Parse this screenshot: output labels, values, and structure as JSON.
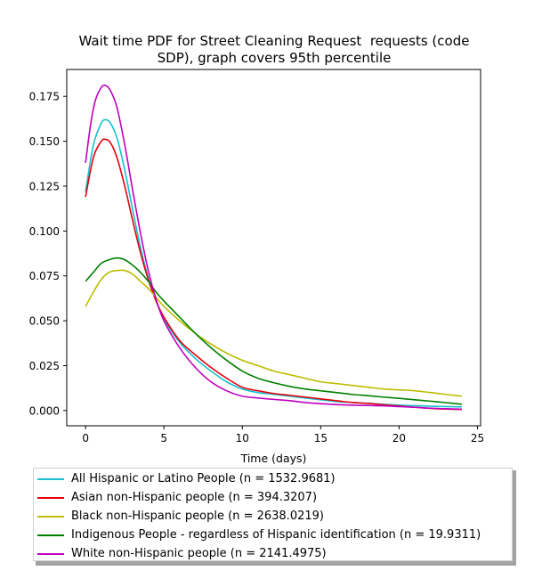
{
  "chart_data": {
    "type": "line",
    "title_lines": [
      "Wait time PDF for Street Cleaning Request  requests (code",
      "SDP), graph covers 95th percentile"
    ],
    "xlabel": "Time (days)",
    "ylabel": "",
    "xlim": [
      -1.2,
      25.2
    ],
    "ylim": [
      -0.0085,
      0.19
    ],
    "xticks": [
      0,
      5,
      10,
      15,
      20,
      25
    ],
    "yticks": [
      0.0,
      0.025,
      0.05,
      0.075,
      0.1,
      0.125,
      0.15,
      0.175
    ],
    "ytick_labels": [
      "0.000",
      "0.025",
      "0.050",
      "0.075",
      "0.100",
      "0.125",
      "0.150",
      "0.175"
    ],
    "legend_position": "below plot",
    "series": [
      {
        "name": "All Hispanic or Latino People (n = 1532.9681)",
        "color": "#17becf",
        "x": [
          0,
          0.5,
          1,
          1.3,
          1.6,
          2,
          2.5,
          3,
          3.5,
          4,
          4.5,
          5,
          6,
          7,
          8,
          9,
          10,
          11,
          12,
          13,
          14,
          15,
          16,
          17,
          18,
          19,
          20,
          21,
          22,
          23,
          24
        ],
        "y": [
          0.122,
          0.148,
          0.16,
          0.162,
          0.16,
          0.152,
          0.134,
          0.112,
          0.091,
          0.074,
          0.061,
          0.051,
          0.038,
          0.029,
          0.022,
          0.016,
          0.012,
          0.01,
          0.009,
          0.008,
          0.007,
          0.006,
          0.005,
          0.0045,
          0.004,
          0.0035,
          0.003,
          0.0027,
          0.0024,
          0.0022,
          0.002
        ]
      },
      {
        "name": "Asian non-Hispanic people (n = 394.3207)",
        "color": "#e8000b",
        "x": [
          0,
          0.5,
          1,
          1.3,
          1.6,
          2,
          2.5,
          3,
          3.5,
          4,
          4.5,
          5,
          6,
          7,
          8,
          9,
          10,
          11,
          12,
          13,
          14,
          15,
          16,
          17,
          18,
          19,
          20,
          21,
          22,
          23,
          24
        ],
        "y": [
          0.119,
          0.141,
          0.15,
          0.151,
          0.149,
          0.141,
          0.125,
          0.106,
          0.088,
          0.073,
          0.061,
          0.052,
          0.039,
          0.031,
          0.024,
          0.018,
          0.013,
          0.011,
          0.0095,
          0.0085,
          0.0075,
          0.0065,
          0.0055,
          0.0045,
          0.004,
          0.0032,
          0.0025,
          0.0018,
          0.0012,
          0.0008,
          0.0006
        ]
      },
      {
        "name": "Black non-Hispanic people (n = 2638.0219)",
        "color": "#bcbd00",
        "x": [
          0,
          0.5,
          1,
          1.5,
          2,
          2.5,
          3,
          3.5,
          4,
          4.5,
          5,
          6,
          7,
          8,
          9,
          10,
          11,
          12,
          13,
          14,
          15,
          16,
          17,
          18,
          19,
          20,
          21,
          22,
          23,
          24
        ],
        "y": [
          0.058,
          0.066,
          0.073,
          0.077,
          0.078,
          0.078,
          0.076,
          0.072,
          0.068,
          0.063,
          0.058,
          0.05,
          0.043,
          0.037,
          0.032,
          0.028,
          0.025,
          0.022,
          0.02,
          0.018,
          0.016,
          0.015,
          0.014,
          0.013,
          0.012,
          0.0115,
          0.011,
          0.01,
          0.009,
          0.008
        ]
      },
      {
        "name": "Indigenous People - regardless of Hispanic identification (n = 19.9311)",
        "color": "#008000",
        "x": [
          0,
          0.5,
          1,
          1.5,
          2,
          2.5,
          3,
          3.5,
          4,
          4.5,
          5,
          6,
          7,
          8,
          9,
          10,
          11,
          12,
          13,
          14,
          15,
          16,
          17,
          18,
          19,
          20,
          21,
          22,
          23,
          24
        ],
        "y": [
          0.072,
          0.077,
          0.082,
          0.084,
          0.085,
          0.084,
          0.081,
          0.077,
          0.072,
          0.066,
          0.061,
          0.052,
          0.043,
          0.035,
          0.028,
          0.022,
          0.018,
          0.0155,
          0.0135,
          0.012,
          0.011,
          0.01,
          0.009,
          0.0083,
          0.0075,
          0.0068,
          0.006,
          0.0052,
          0.0044,
          0.0035
        ]
      },
      {
        "name": "White non-Hispanic people (n = 2141.4975)",
        "color": "#bf00bf",
        "x": [
          0,
          0.3,
          0.6,
          1,
          1.3,
          1.6,
          2,
          2.5,
          3,
          3.5,
          4,
          4.5,
          5,
          6,
          7,
          8,
          9,
          10,
          11,
          12,
          13,
          14,
          15,
          16,
          17,
          18,
          19,
          20,
          21,
          22,
          23,
          24
        ],
        "y": [
          0.138,
          0.158,
          0.172,
          0.18,
          0.181,
          0.178,
          0.169,
          0.148,
          0.123,
          0.099,
          0.078,
          0.062,
          0.05,
          0.035,
          0.024,
          0.016,
          0.011,
          0.008,
          0.007,
          0.0062,
          0.0055,
          0.0045,
          0.0038,
          0.0033,
          0.003,
          0.0028,
          0.0026,
          0.0022,
          0.0018,
          0.0013,
          0.001,
          0.0008
        ]
      }
    ]
  }
}
